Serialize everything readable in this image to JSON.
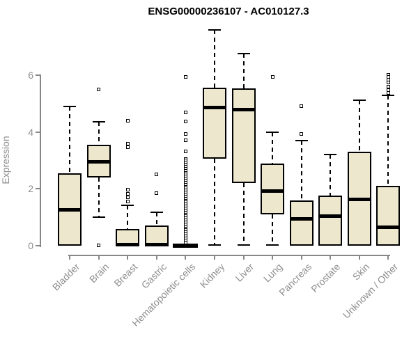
{
  "title": "ENSG00000236107 - AC010127.3",
  "y_axis": {
    "label": "Expression",
    "tick_labels": [
      "0",
      "2",
      "4",
      "6"
    ]
  },
  "colors": {
    "box_fill": "#ede7cd",
    "box_border": "#000000",
    "axis": "#878787",
    "text_gray": "#8e8e8e",
    "title_text": "#000000"
  },
  "chart_data": {
    "type": "boxplot",
    "title": "ENSG00000236107 - AC010127.3",
    "xlabel": "",
    "ylabel": "Expression",
    "yticks": [
      0,
      2,
      4,
      6
    ],
    "ylim": [
      0,
      7.7
    ],
    "grid": false,
    "legend": null,
    "categories": [
      "Bladder",
      "Brain",
      "Breast",
      "Gastric",
      "Hematopoietic cells",
      "Kidney",
      "Liver",
      "Lung",
      "Pancreas",
      "Prostate",
      "Skin",
      "Unknown / Other"
    ],
    "series": [
      {
        "name": "Bladder",
        "low": 0,
        "q1": 0,
        "median": 1.27,
        "q3": 2.55,
        "high": 4.9,
        "outliers": []
      },
      {
        "name": "Brain",
        "low": 1.0,
        "q1": 2.4,
        "median": 2.95,
        "q3": 3.55,
        "high": 4.36,
        "outliers": [
          5.5,
          0.02
        ]
      },
      {
        "name": "Breast",
        "low": 0,
        "q1": 0,
        "median": 0.04,
        "q3": 0.58,
        "high": 1.42,
        "outliers": [
          4.4,
          3.58,
          3.46,
          1.96,
          1.83,
          1.7,
          1.55
        ]
      },
      {
        "name": "Gastric",
        "low": 0,
        "q1": 0,
        "median": 0.04,
        "q3": 0.7,
        "high": 1.18,
        "outliers": [
          2.52,
          1.86
        ]
      },
      {
        "name": "Hematopoietic cells",
        "low": 0,
        "q1": 0,
        "median": 0,
        "q3": 0,
        "high": 0,
        "outliers": [
          5.95,
          4.68,
          4.36,
          3.92,
          3.7,
          3.31,
          3.06,
          2.99,
          2.92,
          2.85,
          2.78,
          2.71,
          2.64,
          2.57,
          2.5,
          2.43,
          2.36,
          2.29,
          2.22,
          2.15,
          2.08,
          2.01,
          1.94,
          1.87,
          1.8,
          1.73,
          1.66,
          1.59,
          1.52,
          1.45,
          1.38,
          1.31,
          1.24,
          1.17,
          1.1,
          1.03,
          0.96,
          0.89,
          0.82,
          0.75,
          0.68,
          0.61,
          0.54,
          0.47,
          0.4,
          0.33,
          0.26,
          0.19,
          0.12
        ]
      },
      {
        "name": "Kidney",
        "low": 0.02,
        "q1": 3.06,
        "median": 4.85,
        "q3": 5.56,
        "high": 7.59,
        "outliers": []
      },
      {
        "name": "Liver",
        "low": 0.02,
        "q1": 2.2,
        "median": 4.78,
        "q3": 5.53,
        "high": 6.75,
        "outliers": []
      },
      {
        "name": "Lung",
        "low": 0.02,
        "q1": 1.1,
        "median": 1.93,
        "q3": 2.89,
        "high": 4.0,
        "outliers": [
          5.95
        ]
      },
      {
        "name": "Pancreas",
        "low": 0,
        "q1": 0,
        "median": 0.95,
        "q3": 1.6,
        "high": 3.7,
        "outliers": [
          4.9,
          3.94
        ]
      },
      {
        "name": "Prostate",
        "low": 0,
        "q1": 0,
        "median": 1.03,
        "q3": 1.76,
        "high": 3.2,
        "outliers": []
      },
      {
        "name": "Skin",
        "low": 0,
        "q1": 0,
        "median": 1.62,
        "q3": 3.3,
        "high": 5.12,
        "outliers": []
      },
      {
        "name": "Unknown / Other",
        "low": 0,
        "q1": 0,
        "median": 0.66,
        "q3": 2.11,
        "high": 5.28,
        "outliers": [
          6.02,
          5.93,
          5.84,
          5.74,
          5.6,
          5.48,
          5.38
        ]
      }
    ]
  }
}
